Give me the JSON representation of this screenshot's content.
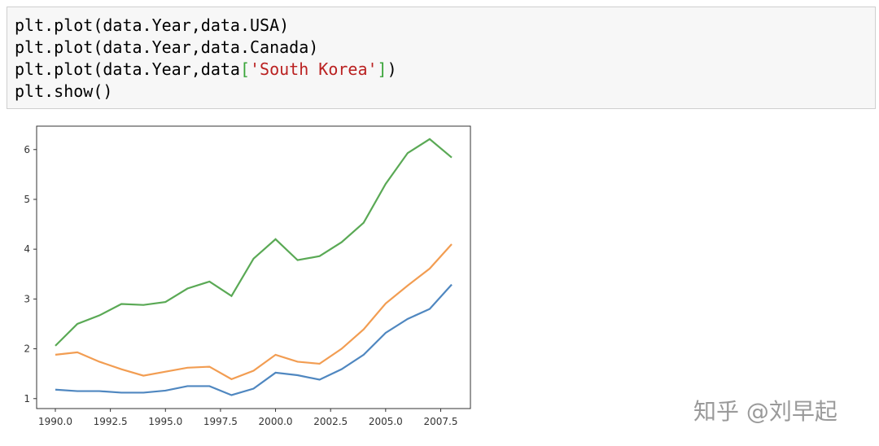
{
  "code": [
    [
      {
        "text": "plt.plot(data.Year,data.USA)",
        "color": "#000000"
      }
    ],
    [
      {
        "text": "plt.plot(data.Year,data.Canada)",
        "color": "#000000"
      }
    ],
    [
      {
        "text": "plt.plot(data.Year,data",
        "color": "#000000"
      },
      {
        "text": "[",
        "color": "#3aa53a"
      },
      {
        "text": "'South Korea'",
        "color": "#ba2121"
      },
      {
        "text": "]",
        "color": "#3aa53a"
      },
      {
        "text": ")",
        "color": "#000000"
      }
    ],
    [
      {
        "text": "plt.show()",
        "color": "#000000"
      }
    ]
  ],
  "chart_data": {
    "type": "line",
    "x": [
      1990,
      1991,
      1992,
      1993,
      1994,
      1995,
      1996,
      1997,
      1998,
      1999,
      2000,
      2001,
      2002,
      2003,
      2004,
      2005,
      2006,
      2007,
      2008
    ],
    "series": [
      {
        "color": "#4f87c0",
        "values": [
          1.18,
          1.15,
          1.15,
          1.12,
          1.12,
          1.16,
          1.25,
          1.25,
          1.07,
          1.2,
          1.52,
          1.47,
          1.38,
          1.59,
          1.88,
          2.32,
          2.6,
          2.8,
          3.29
        ]
      },
      {
        "color": "#f29d52",
        "values": [
          1.88,
          1.93,
          1.74,
          1.59,
          1.46,
          1.54,
          1.62,
          1.64,
          1.39,
          1.56,
          1.88,
          1.74,
          1.7,
          2.0,
          2.39,
          2.91,
          3.27,
          3.61,
          4.1
        ]
      },
      {
        "color": "#5aa955",
        "values": [
          2.06,
          2.5,
          2.67,
          2.9,
          2.88,
          2.94,
          3.21,
          3.35,
          3.06,
          3.81,
          4.2,
          3.78,
          3.86,
          4.14,
          4.53,
          5.31,
          5.93,
          6.21,
          5.84
        ]
      }
    ],
    "xlim": [
      1989.15,
      2008.85
    ],
    "ylim": [
      0.8,
      6.47
    ],
    "xticks": [
      {
        "value": 1990,
        "label": "1990.0"
      },
      {
        "value": 1992.5,
        "label": "1992.5"
      },
      {
        "value": 1995,
        "label": "1995.0"
      },
      {
        "value": 1997.5,
        "label": "1997.5"
      },
      {
        "value": 2000,
        "label": "2000.0"
      },
      {
        "value": 2002.5,
        "label": "2002.5"
      },
      {
        "value": 2005,
        "label": "2005.0"
      },
      {
        "value": 2007.5,
        "label": "2007.5"
      }
    ],
    "yticks": [
      1,
      2,
      3,
      4,
      5,
      6
    ],
    "grid": false
  },
  "watermark": "知乎 @刘早起"
}
